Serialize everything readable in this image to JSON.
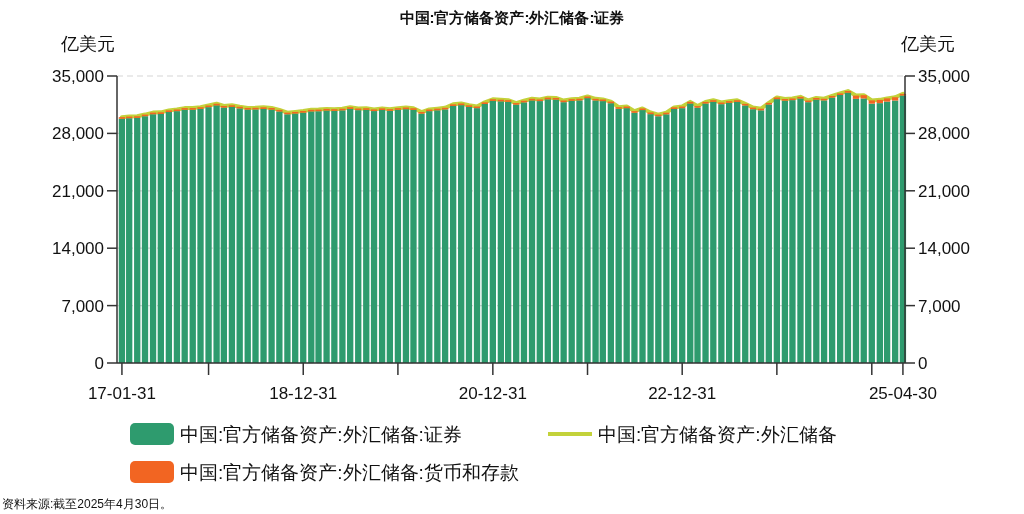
{
  "chart_data": {
    "type": "bar",
    "stacked": true,
    "title": "中国:官方储备资产:外汇储备:证券",
    "ylabel": "亿美元",
    "y2label": "亿美元",
    "x": [
      "2017-01-31",
      "2017-02-28",
      "2017-03-31",
      "2017-04-30",
      "2017-05-31",
      "2017-06-30",
      "2017-07-31",
      "2017-08-31",
      "2017-09-30",
      "2017-10-31",
      "2017-11-30",
      "2017-12-31",
      "2018-01-31",
      "2018-02-28",
      "2018-03-31",
      "2018-04-30",
      "2018-05-31",
      "2018-06-30",
      "2018-07-31",
      "2018-08-31",
      "2018-09-30",
      "2018-10-31",
      "2018-11-30",
      "2018-12-31",
      "2019-01-31",
      "2019-02-28",
      "2019-03-31",
      "2019-04-30",
      "2019-05-31",
      "2019-06-30",
      "2019-07-31",
      "2019-08-31",
      "2019-09-30",
      "2019-10-31",
      "2019-11-30",
      "2019-12-31",
      "2020-01-31",
      "2020-02-29",
      "2020-03-31",
      "2020-04-30",
      "2020-05-31",
      "2020-06-30",
      "2020-07-31",
      "2020-08-31",
      "2020-09-30",
      "2020-10-31",
      "2020-11-30",
      "2020-12-31",
      "2021-01-31",
      "2021-02-28",
      "2021-03-31",
      "2021-04-30",
      "2021-05-31",
      "2021-06-30",
      "2021-07-31",
      "2021-08-31",
      "2021-09-30",
      "2021-10-31",
      "2021-11-30",
      "2021-12-31",
      "2022-01-31",
      "2022-02-28",
      "2022-03-31",
      "2022-04-30",
      "2022-05-31",
      "2022-06-30",
      "2022-07-31",
      "2022-08-31",
      "2022-09-30",
      "2022-10-31",
      "2022-11-30",
      "2022-12-31",
      "2023-01-31",
      "2023-02-28",
      "2023-03-31",
      "2023-04-30",
      "2023-05-31",
      "2023-06-30",
      "2023-07-31",
      "2023-08-31",
      "2023-09-30",
      "2023-10-31",
      "2023-11-30",
      "2023-12-31",
      "2024-01-31",
      "2024-02-29",
      "2024-03-31",
      "2024-04-30",
      "2024-05-31",
      "2024-06-30",
      "2024-07-31",
      "2024-08-31",
      "2024-09-30",
      "2024-10-31",
      "2024-11-30",
      "2024-12-31",
      "2025-01-31",
      "2025-02-28",
      "2025-03-31",
      "2025-04-30"
    ],
    "series": [
      {
        "name": "中国:官方储备资产:外汇储备:证券",
        "color": "#2e9b6e",
        "values": [
          29782,
          29851,
          29891,
          30095,
          30336,
          30368,
          30607,
          30715,
          30885,
          30892,
          30993,
          31199,
          31415,
          31145,
          31228,
          31049,
          30906,
          30921,
          30979,
          30897,
          30670,
          30331,
          30417,
          30527,
          30679,
          30702,
          30788,
          30750,
          30810,
          30992,
          30837,
          30872,
          30724,
          30852,
          30756,
          30879,
          30955,
          30867,
          30406,
          30715,
          30817,
          30923,
          31344,
          31446,
          31226,
          31080,
          31585,
          31965,
          31907,
          31850,
          31500,
          31782,
          32018,
          31940,
          32159,
          32121,
          31806,
          31976,
          32024,
          32302,
          32016,
          31938,
          31680,
          30997,
          31078,
          30513,
          30843,
          30349,
          30090,
          30324,
          30975,
          31077,
          31645,
          31132,
          31639,
          31848,
          31565,
          31730,
          31843,
          31401,
          30951,
          30812,
          31518,
          32180,
          31993,
          32058,
          32257,
          31808,
          32120,
          32024,
          32364,
          32682,
          32964,
          32210,
          32259,
          31624,
          31690,
          31872,
          32007,
          32617
        ]
      },
      {
        "name": "中国:官方储备资产:外汇储备",
        "type": "line",
        "color": "#c3d23a",
        "values": [
          29982,
          30051,
          30091,
          30295,
          30536,
          30568,
          30807,
          30915,
          31085,
          31092,
          31193,
          31399,
          31615,
          31345,
          31428,
          31249,
          31106,
          31121,
          31179,
          31097,
          30870,
          30531,
          30617,
          30727,
          30879,
          30902,
          30988,
          30950,
          31010,
          31192,
          31037,
          31072,
          30924,
          31052,
          30956,
          31079,
          31155,
          31067,
          30606,
          30915,
          31017,
          31123,
          31544,
          31646,
          31426,
          31280,
          31785,
          32165,
          32107,
          32050,
          31700,
          31982,
          32218,
          32140,
          32359,
          32321,
          32006,
          32176,
          32224,
          32502,
          32216,
          32138,
          31880,
          31197,
          31278,
          30713,
          31043,
          30549,
          30290,
          30524,
          31175,
          31277,
          31845,
          31332,
          31839,
          32048,
          31765,
          31930,
          32043,
          31601,
          31151,
          31012,
          31718,
          32380,
          32193,
          32258,
          32457,
          32008,
          32320,
          32224,
          32564,
          32882,
          33164,
          32610,
          32659,
          32024,
          32090,
          32272,
          32407,
          32817
        ]
      },
      {
        "name": "中国:官方储备资产:外汇储备:货币和存款",
        "color": "#f26522",
        "values": [
          200,
          200,
          200,
          200,
          200,
          200,
          200,
          200,
          200,
          200,
          200,
          200,
          200,
          200,
          200,
          200,
          200,
          200,
          200,
          200,
          200,
          200,
          200,
          200,
          200,
          200,
          200,
          200,
          200,
          200,
          200,
          200,
          200,
          200,
          200,
          200,
          200,
          200,
          200,
          200,
          200,
          200,
          200,
          200,
          200,
          200,
          200,
          200,
          200,
          200,
          200,
          200,
          200,
          200,
          200,
          200,
          200,
          200,
          200,
          200,
          200,
          200,
          200,
          200,
          200,
          200,
          200,
          200,
          200,
          200,
          200,
          200,
          200,
          200,
          200,
          200,
          200,
          200,
          200,
          200,
          200,
          200,
          200,
          200,
          200,
          200,
          200,
          200,
          200,
          200,
          200,
          200,
          200,
          400,
          400,
          400,
          400,
          400,
          400,
          200
        ]
      }
    ],
    "xlim": [
      "2017-01-12",
      "2025-05-08"
    ],
    "xticks": [
      {
        "value": "2017-01-31",
        "label": "17-01-31"
      },
      {
        "value": "2017-12-31",
        "label": null
      },
      {
        "value": "2018-12-31",
        "label": "18-12-31"
      },
      {
        "value": "2019-12-31",
        "label": null
      },
      {
        "value": "2020-12-31",
        "label": "20-12-31"
      },
      {
        "value": "2021-12-31",
        "label": null
      },
      {
        "value": "2022-12-31",
        "label": "22-12-31"
      },
      {
        "value": "2023-12-31",
        "label": null
      },
      {
        "value": "2024-12-31",
        "label": null
      },
      {
        "value": "2025-04-30",
        "label": "25-04-30"
      }
    ],
    "ylim": [
      0,
      35000
    ],
    "yticks": [
      {
        "value": 0,
        "label": "0"
      },
      {
        "value": 7000,
        "label": "7,000"
      },
      {
        "value": 14000,
        "label": "14,000"
      },
      {
        "value": 21000,
        "label": "21,000"
      },
      {
        "value": 28000,
        "label": "28,000"
      },
      {
        "value": 35000,
        "label": "35,000"
      }
    ],
    "y2lim": [
      0,
      35000
    ],
    "y2ticks": [
      {
        "value": 0,
        "label": "0"
      },
      {
        "value": 7000,
        "label": "7,000"
      },
      {
        "value": 14000,
        "label": "14,000"
      },
      {
        "value": 21000,
        "label": "21,000"
      },
      {
        "value": 28000,
        "label": "28,000"
      },
      {
        "value": 35000,
        "label": "35,000"
      }
    ],
    "grid": "y",
    "legend": "bottom",
    "line_style": "solid",
    "marker": "none",
    "annotations": [
      "资料来源:截至2025年4月30日。"
    ]
  }
}
